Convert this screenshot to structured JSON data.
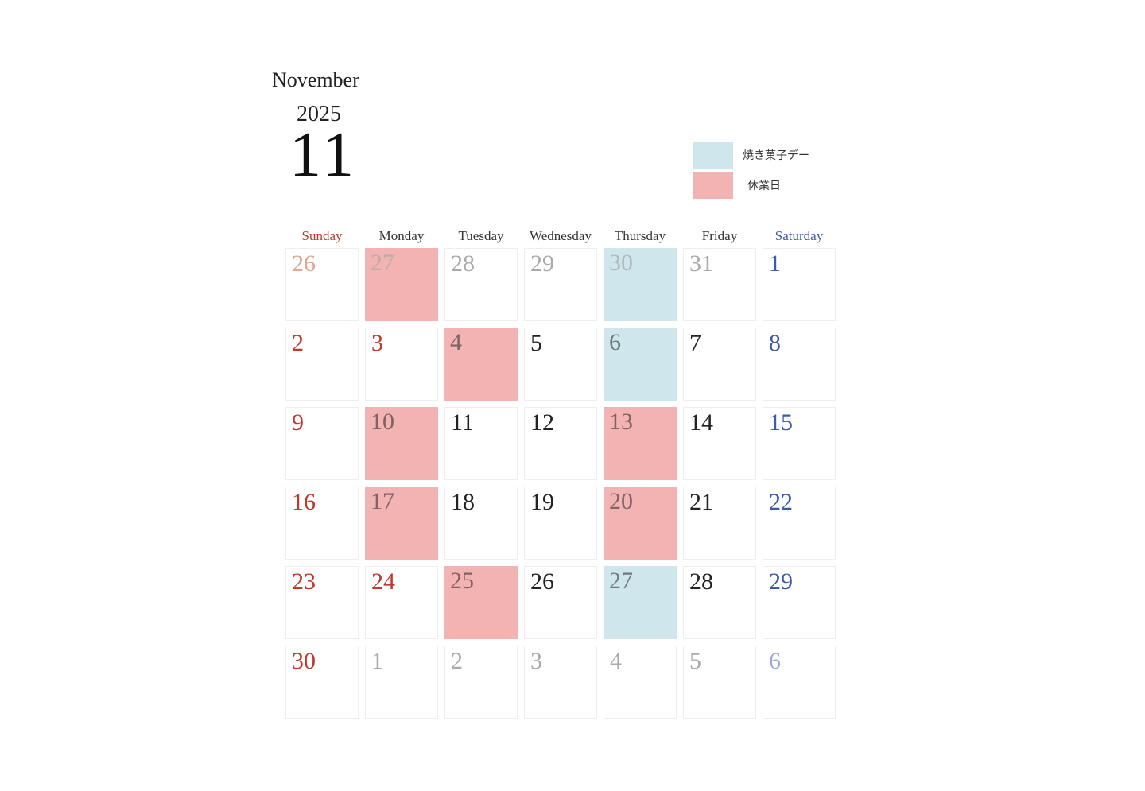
{
  "header": {
    "month_en": "November",
    "year": "2025",
    "month_num": "11"
  },
  "legend": [
    {
      "label": "焼き菓子デー",
      "color": "#cfe7ec"
    },
    {
      "label": "休業日",
      "color": "#f4b3b3"
    }
  ],
  "colors": {
    "sunday": "#c0392b",
    "saturday": "#3b5ba8",
    "weekday": "#222222",
    "muted": "#aaaaaa",
    "muted_sunday": "#e3a592",
    "muted_saturday": "#9eaad6",
    "closed": "#f4b3b3",
    "baked": "#cfe7ec"
  },
  "weekdays": [
    "Sunday",
    "Monday",
    "Tuesday",
    "Wednesday",
    "Thursday",
    "Friday",
    "Saturday"
  ],
  "weeks": [
    [
      {
        "d": "26",
        "m": true
      },
      {
        "d": "27",
        "m": true,
        "t": "closed"
      },
      {
        "d": "28",
        "m": true
      },
      {
        "d": "29",
        "m": true
      },
      {
        "d": "30",
        "m": true,
        "t": "baked"
      },
      {
        "d": "31",
        "m": true
      },
      {
        "d": "1"
      }
    ],
    [
      {
        "d": "2"
      },
      {
        "d": "3",
        "h": true
      },
      {
        "d": "4",
        "t": "closed"
      },
      {
        "d": "5"
      },
      {
        "d": "6",
        "t": "baked"
      },
      {
        "d": "7"
      },
      {
        "d": "8"
      }
    ],
    [
      {
        "d": "9"
      },
      {
        "d": "10",
        "t": "closed"
      },
      {
        "d": "11"
      },
      {
        "d": "12"
      },
      {
        "d": "13",
        "t": "closed"
      },
      {
        "d": "14"
      },
      {
        "d": "15"
      }
    ],
    [
      {
        "d": "16"
      },
      {
        "d": "17",
        "t": "closed"
      },
      {
        "d": "18"
      },
      {
        "d": "19"
      },
      {
        "d": "20",
        "t": "closed"
      },
      {
        "d": "21"
      },
      {
        "d": "22"
      }
    ],
    [
      {
        "d": "23"
      },
      {
        "d": "24",
        "h": true
      },
      {
        "d": "25",
        "t": "closed"
      },
      {
        "d": "26"
      },
      {
        "d": "27",
        "t": "baked"
      },
      {
        "d": "28"
      },
      {
        "d": "29"
      }
    ],
    [
      {
        "d": "30"
      },
      {
        "d": "1",
        "m": true
      },
      {
        "d": "2",
        "m": true
      },
      {
        "d": "3",
        "m": true
      },
      {
        "d": "4",
        "m": true
      },
      {
        "d": "5",
        "m": true
      },
      {
        "d": "6",
        "m": true
      }
    ]
  ]
}
